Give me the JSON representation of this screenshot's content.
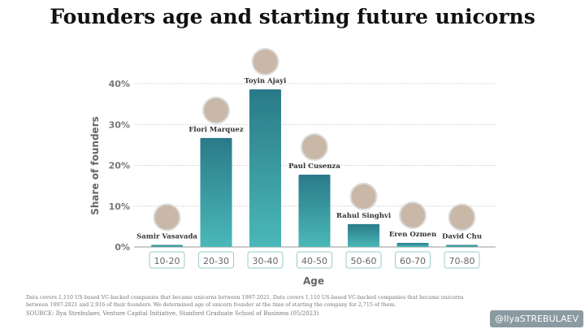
{
  "chart_data": {
    "type": "bar",
    "title": "Founders age and starting future unicorns",
    "xlabel": "Age",
    "ylabel": "Share of founders",
    "categories": [
      "10-20",
      "20-30",
      "30-40",
      "40-50",
      "50-60",
      "60-70",
      "70-80"
    ],
    "values": [
      0.5,
      26.7,
      38.6,
      17.7,
      5.6,
      1.0,
      0.5
    ],
    "founders": [
      "Samir Vasavada",
      "Flori Marquez",
      "Toyin Ajayi",
      "Paul Cusenza",
      "Rahul Singhvi",
      "Eren Ozmen",
      "David Chu"
    ],
    "yticks": [
      "0%",
      "10%",
      "20%",
      "30%",
      "40%"
    ],
    "ylim": [
      0,
      40
    ],
    "grid": true,
    "colors": {
      "bar_top": "#2a7a88",
      "bar_bottom": "#4ab8b8",
      "axis": "#aaaaaa"
    }
  },
  "notes": {
    "line1": "Data covers 1,110 US-based VC-backed companies that became unicorns between 1997-2021. Data covers 1,110 US-based VC-backed companies that became unicorns between 1997-2021 and 2,916 of their founders. We determined age of unicorn founder at the time of starting the company for 2,715 of them.",
    "source": "SOURCE: Ilya Strebulaev, Venture Capital Initiative, Stanford Graduate School of Business (05/2023)"
  },
  "handle": "@IlyaSTREBULAEV"
}
